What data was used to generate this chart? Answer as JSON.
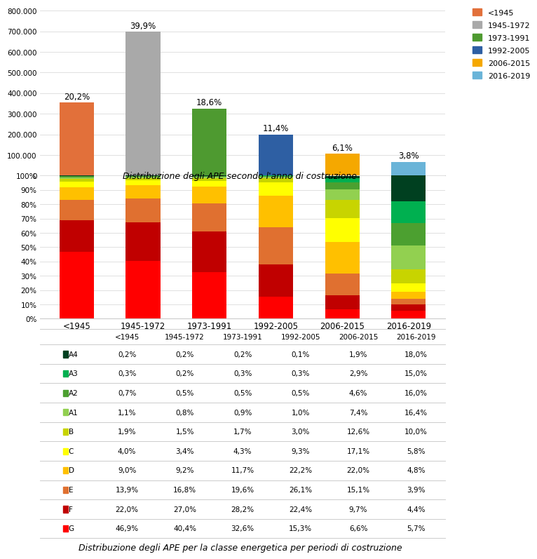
{
  "bar_categories": [
    "<1945",
    "1945-1972",
    "1973-1991",
    "1992-2005",
    "2006-2015",
    "2016-2019"
  ],
  "bar_values": [
    354000,
    698000,
    325000,
    199000,
    107000,
    67000
  ],
  "bar_percentages": [
    "20,2%",
    "39,9%",
    "18,6%",
    "11,4%",
    "6,1%",
    "3,8%"
  ],
  "bar_colors": [
    "#E2703A",
    "#A9A9A9",
    "#4E9A30",
    "#2E5FA3",
    "#F5A800",
    "#6AB4D8"
  ],
  "legend_labels": [
    "<1945",
    "1945-1972",
    "1973-1991",
    "1992-2005",
    "2006-2015",
    "2016-2019"
  ],
  "chart1_title": "Distribuzione degli APE secondo l'anno di costruzione",
  "chart2_title": "Distribuzione degli APE per la classe energetica per periodi di costruzione",
  "stacked_categories": [
    "<1945",
    "1945-1972",
    "1973-1991",
    "1992-2005",
    "2006-2015",
    "2016-2019"
  ],
  "energy_classes": [
    "G",
    "F",
    "E",
    "D",
    "C",
    "B",
    "A1",
    "A2",
    "A3",
    "A4"
  ],
  "energy_colors": [
    "#FF0000",
    "#C00000",
    "#E07030",
    "#FFC000",
    "#FFFF00",
    "#C8D400",
    "#92D050",
    "#4CA030",
    "#00B050",
    "#004020"
  ],
  "stacked_data": {
    "G": [
      46.9,
      40.4,
      32.6,
      15.3,
      6.6,
      5.7
    ],
    "F": [
      22.0,
      27.0,
      28.2,
      22.4,
      9.7,
      4.4
    ],
    "E": [
      13.9,
      16.8,
      19.6,
      26.1,
      15.1,
      3.9
    ],
    "D": [
      9.0,
      9.2,
      11.7,
      22.2,
      22.0,
      4.8
    ],
    "C": [
      4.0,
      3.4,
      4.3,
      9.3,
      17.1,
      5.8
    ],
    "B": [
      1.9,
      1.5,
      1.7,
      3.0,
      12.6,
      10.0
    ],
    "A1": [
      1.1,
      0.8,
      0.9,
      1.0,
      7.4,
      16.4
    ],
    "A2": [
      0.7,
      0.5,
      0.5,
      0.5,
      4.6,
      16.0
    ],
    "A3": [
      0.3,
      0.2,
      0.3,
      0.3,
      2.9,
      15.0
    ],
    "A4": [
      0.2,
      0.2,
      0.2,
      0.1,
      1.9,
      18.0
    ]
  },
  "table_data": {
    "A4": [
      "0,2%",
      "0,2%",
      "0,2%",
      "0,1%",
      "1,9%",
      "18,0%"
    ],
    "A3": [
      "0,3%",
      "0,2%",
      "0,3%",
      "0,3%",
      "2,9%",
      "15,0%"
    ],
    "A2": [
      "0,7%",
      "0,5%",
      "0,5%",
      "0,5%",
      "4,6%",
      "16,0%"
    ],
    "A1": [
      "1,1%",
      "0,8%",
      "0,9%",
      "1,0%",
      "7,4%",
      "16,4%"
    ],
    "B": [
      "1,9%",
      "1,5%",
      "1,7%",
      "3,0%",
      "12,6%",
      "10,0%"
    ],
    "C": [
      "4,0%",
      "3,4%",
      "4,3%",
      "9,3%",
      "17,1%",
      "5,8%"
    ],
    "D": [
      "9,0%",
      "9,2%",
      "11,7%",
      "22,2%",
      "22,0%",
      "4,8%"
    ],
    "E": [
      "13,9%",
      "16,8%",
      "19,6%",
      "26,1%",
      "15,1%",
      "3,9%"
    ],
    "F": [
      "22,0%",
      "27,0%",
      "28,2%",
      "22,4%",
      "9,7%",
      "4,4%"
    ],
    "G": [
      "46,9%",
      "40,4%",
      "32,6%",
      "15,3%",
      "6,6%",
      "5,7%"
    ]
  },
  "table_row_colors": {
    "A4": "#004020",
    "A3": "#00B050",
    "A2": "#4CA030",
    "A1": "#92D050",
    "B": "#C8D400",
    "C": "#FFFF00",
    "D": "#FFC000",
    "E": "#E07030",
    "F": "#C00000",
    "G": "#FF0000"
  }
}
